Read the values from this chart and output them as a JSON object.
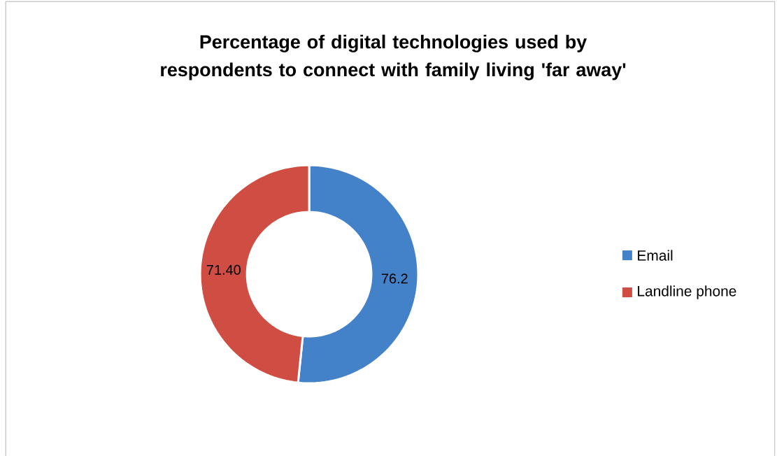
{
  "chart_data": {
    "type": "donut",
    "title": "Percentage of digital technologies used by respondents to connect with family living 'far away'",
    "categories": [
      "Email",
      "Landline phone"
    ],
    "values": [
      76.2,
      71.4
    ],
    "value_labels": [
      "76.2",
      "71.40"
    ],
    "colors": [
      "#4382c9",
      "#cf4d43"
    ],
    "legend": "right"
  }
}
